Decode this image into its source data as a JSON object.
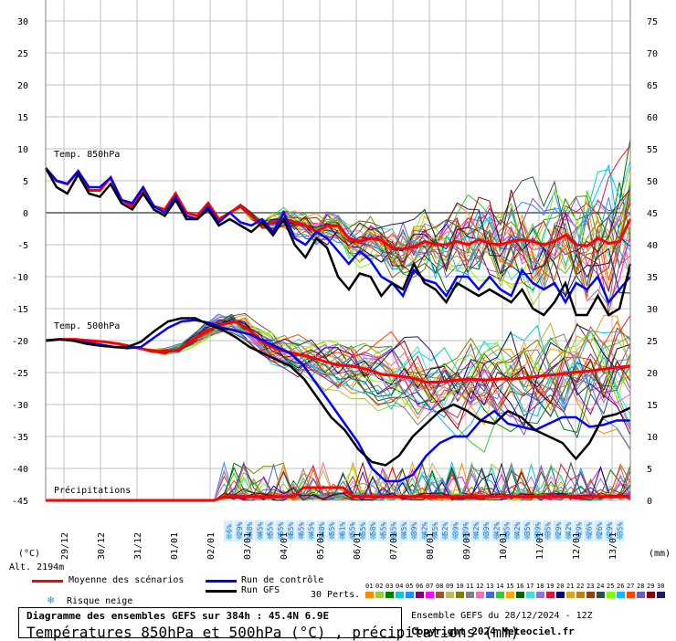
{
  "chart_data": {
    "type": "line",
    "title": "Diagramme des ensembles GEFS sur 384h : 45.4N 6.9E",
    "subtitle": "Températures 850hPa et 500hPa (°C) , précipitations (mm)",
    "left_axis": {
      "label": "(°C)",
      "ticks": [
        30,
        25,
        20,
        15,
        10,
        5,
        0,
        -5,
        -10,
        -15,
        -20,
        -25,
        -30,
        -35,
        -40,
        -45
      ],
      "range": [
        -45,
        30
      ]
    },
    "right_axis": {
      "label": "(mm)",
      "ticks": [
        75,
        70,
        65,
        60,
        55,
        50,
        45,
        40,
        35,
        30,
        25,
        20,
        15,
        10,
        5,
        0
      ],
      "range": [
        0,
        75
      ]
    },
    "x_labels": [
      "29/12",
      "30/12",
      "31/12",
      "01/01",
      "02/01",
      "03/01",
      "04/01",
      "05/01",
      "06/01",
      "07/01",
      "08/01",
      "09/01",
      "10/01",
      "11/01",
      "12/01",
      "13/01"
    ],
    "panel_labels": {
      "t850": "Temp. 850hPa",
      "t500": "Temp. 500hPa",
      "precip": "Précipitations"
    },
    "altitude_label": "Alt. 2194m",
    "snow_risk_percent": [
      "6%",
      "29%",
      "48%",
      "45%",
      "55%",
      "65%",
      "65%",
      "65%",
      "45%",
      "48%",
      "55%",
      "61%",
      "55%",
      "55%",
      "58%",
      "55%",
      "45%",
      "45%",
      "39%",
      "42%",
      "45%",
      "52%",
      "39%",
      "39%",
      "42%",
      "39%",
      "42%",
      "35%",
      "42%",
      "35%",
      "39%",
      "35%",
      "29%",
      "42%",
      "29%",
      "26%",
      "26%",
      "29%",
      "35%"
    ],
    "series": [
      {
        "name": "Moyenne des scénarios",
        "color": "#ff0000",
        "t850": [
          7,
          5,
          4.5,
          6.5,
          3.5,
          3.5,
          5.5,
          2,
          1,
          3.5,
          1,
          0.5,
          3,
          0,
          -0.5,
          1.5,
          -1,
          0,
          1,
          -0.5,
          -2,
          -1.5,
          -1,
          -1.5,
          -2,
          -3,
          -2,
          -2,
          -4,
          -4.5,
          -4,
          -4.3,
          -5.5,
          -5.7,
          -5.3,
          -4.5,
          -5,
          -5,
          -4.5,
          -5,
          -4.2,
          -4.8,
          -5,
          -4.5,
          -4.2,
          -4.5,
          -5,
          -4.5,
          -3.5,
          -5,
          -5.2,
          -4,
          -4.8,
          -4.5,
          -1
        ],
        "t500": [
          -20,
          -19.8,
          -19.8,
          -20,
          -20.2,
          -20.5,
          -21,
          -21.5,
          -21.8,
          -21.5,
          -20,
          -18.5,
          -17.5,
          -17,
          -18.5,
          -20.5,
          -21.5,
          -22,
          -22.5,
          -23.2,
          -23.8,
          -24,
          -24.5,
          -25.3,
          -25.5,
          -25.8,
          -26.5,
          -26.5,
          -26.2,
          -26,
          -26.2,
          -26,
          -26,
          -25.8,
          -25.5,
          -25.3,
          -25,
          -24.8,
          -24.5,
          -24.2,
          -24
        ]
      },
      {
        "name": "Run de contrôle",
        "color": "#0000ff",
        "t850": [
          7,
          5,
          4.5,
          6.5,
          4,
          4,
          5.5,
          2,
          1.5,
          4,
          1,
          0,
          2.5,
          -0.5,
          -1,
          1,
          -1.5,
          0,
          -1.5,
          -2,
          -1,
          -3,
          0,
          -4,
          -5,
          -3,
          -4,
          -6,
          -8,
          -6,
          -7.5,
          -10,
          -11,
          -13,
          -9,
          -10.5,
          -11,
          -13,
          -10,
          -10,
          -12,
          -10,
          -12,
          -13,
          -9,
          -11,
          -12,
          -11,
          -14,
          -11,
          -12,
          -10,
          -14,
          -12,
          -10
        ],
        "t500": [
          -20,
          -19.8,
          -20,
          -20.3,
          -20.6,
          -21,
          -21.2,
          -21,
          -19.5,
          -18,
          -17,
          -16.8,
          -17.2,
          -18,
          -18.5,
          -19,
          -20,
          -21,
          -22,
          -24,
          -27,
          -30,
          -33,
          -36,
          -40,
          -42,
          -42,
          -41,
          -38,
          -36,
          -35,
          -35,
          -32.5,
          -31,
          -33,
          -33.5,
          -34,
          -33,
          -32,
          -32,
          -33.5,
          -33.2,
          -32.5,
          -32.5
        ]
      },
      {
        "name": "Run GFS",
        "color": "#000000",
        "t850": [
          7,
          4,
          3,
          6,
          3,
          2.5,
          4.5,
          1.5,
          0.5,
          3,
          0.5,
          -0.5,
          2,
          -1,
          -1,
          0.5,
          -2,
          -1,
          -2,
          -3,
          -1.5,
          -3.5,
          -1,
          -5,
          -7,
          -4,
          -5.5,
          -10,
          -12,
          -9.5,
          -10,
          -13,
          -11,
          -12,
          -8,
          -11,
          -12,
          -14,
          -11,
          -12,
          -13,
          -12,
          -13,
          -14,
          -12,
          -15,
          -16,
          -14,
          -11,
          -16,
          -16,
          -13,
          -16,
          -15,
          -8
        ],
        "t500": [
          -20,
          -19.8,
          -20,
          -20.5,
          -20.8,
          -21,
          -21,
          -20.2,
          -18.5,
          -17,
          -16.5,
          -16.5,
          -17.5,
          -18.3,
          -19.5,
          -21,
          -22,
          -23,
          -24,
          -26,
          -29,
          -32,
          -34,
          -37,
          -39,
          -39.5,
          -38,
          -35,
          -33,
          -31,
          -30,
          -31,
          -32.5,
          -33,
          -31,
          -32,
          -34,
          -35,
          -36,
          -38.5,
          -36,
          -32,
          -31.5,
          -30.5
        ]
      }
    ],
    "members_count": 30,
    "members_label": "30 Perts.",
    "members": [
      "01",
      "02",
      "03",
      "04",
      "05",
      "06",
      "07",
      "08",
      "09",
      "10",
      "11",
      "12",
      "13",
      "14",
      "15",
      "16",
      "17",
      "18",
      "19",
      "20",
      "21",
      "22",
      "23",
      "24",
      "25",
      "26",
      "27",
      "28",
      "29",
      "30"
    ],
    "member_colors": [
      "#ff8c00",
      "#9acd32",
      "#008000",
      "#00ced1",
      "#1e90ff",
      "#800080",
      "#ff00ff",
      "#a0522d",
      "#bdb76b",
      "#808000",
      "#808080",
      "#ff69b4",
      "#4169e1",
      "#32cd32",
      "#ffa500",
      "#006400",
      "#40e0d0",
      "#9370db",
      "#dc143c",
      "#000080",
      "#daa520",
      "#b8860b",
      "#8b4513",
      "#2f4f4f",
      "#7fff00",
      "#00bfff",
      "#ff4500",
      "#6a5acd",
      "#8b0000",
      "#191970"
    ],
    "gridlines": true
  },
  "legend": {
    "mean": "Moyenne des scénarios",
    "control": "Run de contrôle",
    "gfs": "Run GFS",
    "snow": "Risque neige"
  },
  "footer": {
    "ensemble": "Ensemble GEFS du 28/12/2024 - 12Z",
    "copyright": "Copyright 2024 Meteociel.fr"
  }
}
